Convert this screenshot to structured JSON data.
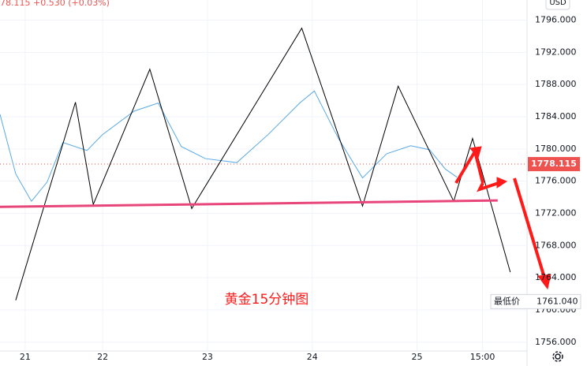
{
  "header": {
    "quote": "78.115 +0.530 (+0.03%)",
    "currency": "USD"
  },
  "chart_data": {
    "type": "line",
    "annotation": "黄金15分钟图",
    "xlim": [
      21.02,
      26.05
    ],
    "xticks": [
      {
        "value": 21.26,
        "label": "21"
      },
      22,
      23,
      24,
      25,
      {
        "value": 25.625,
        "label": "15:00"
      }
    ],
    "ylim": [
      1754.9,
      1798.5
    ],
    "yticks": [
      {
        "value": 1756,
        "label": "1756.000"
      },
      {
        "value": 1760,
        "label": "1760.000"
      },
      {
        "value": 1764,
        "label": "1764.000"
      },
      {
        "value": 1768,
        "label": "1768.000"
      },
      {
        "value": 1772,
        "label": "1772.000"
      },
      {
        "value": 1776,
        "label": "1776.000"
      },
      {
        "value": 1780,
        "label": "1780.000"
      },
      {
        "value": 1784,
        "label": "1784.000"
      },
      {
        "value": 1788,
        "label": "1788.000"
      },
      {
        "value": 1792,
        "label": "1792.000"
      },
      {
        "value": 1796,
        "label": "1796.000"
      }
    ],
    "grid": true,
    "series": [
      {
        "color": "#5aa9e6",
        "line_width": 1,
        "x": [
          21.02,
          21.17,
          21.32,
          21.47,
          21.62,
          21.85,
          22.0,
          22.3,
          22.53,
          22.75,
          22.98,
          23.28,
          23.58,
          23.88,
          24.02,
          24.25,
          24.48,
          24.71,
          24.94,
          25.12,
          25.27,
          25.38
        ],
        "values": [
          1784.3,
          1776.9,
          1773.5,
          1775.9,
          1780.8,
          1779.8,
          1781.8,
          1784.7,
          1785.7,
          1780.3,
          1778.8,
          1778.3,
          1781.8,
          1785.7,
          1787.2,
          1781.3,
          1776.4,
          1779.4,
          1780.4,
          1779.9,
          1777.5,
          1776.5
        ]
      },
      {
        "color": "#000000",
        "line_width": 1,
        "x": [
          21.17,
          21.74,
          21.91,
          22.45,
          22.85,
          23.9,
          24.48,
          24.82,
          25.35,
          25.53,
          25.89
        ],
        "values": [
          1761.2,
          1785.8,
          1773.1,
          1789.9,
          1772.6,
          1795.0,
          1772.9,
          1787.8,
          1773.5,
          1781.3,
          1764.7
        ]
      },
      {
        "color": "#e8457a",
        "line_width": 3,
        "x": [
          21.02,
          25.77
        ],
        "values": [
          1772.8,
          1773.6
        ]
      }
    ],
    "current_price": {
      "value": 1778.115,
      "label": "1778.115",
      "color": "#ef5350"
    },
    "low": {
      "label": "最低价",
      "value": 1761.04,
      "value_label": "1761.040"
    }
  }
}
